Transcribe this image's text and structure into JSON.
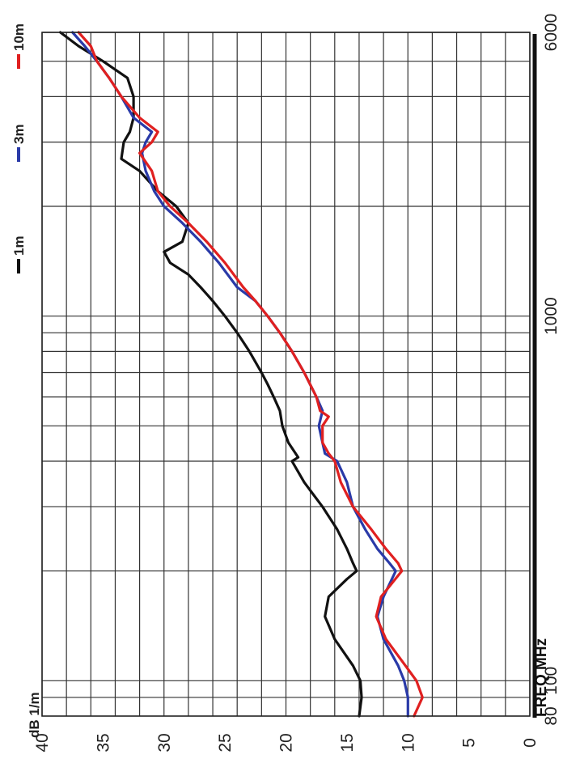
{
  "chart_data": {
    "type": "line",
    "xlabel": "FREQ MHz",
    "ylabel": "dB 1/m",
    "x_scale": "log",
    "xlim": [
      80,
      6000
    ],
    "ylim": [
      0,
      40
    ],
    "x_ticks": [
      80,
      100,
      1000,
      6000
    ],
    "y_ticks": [
      0,
      5,
      10,
      15,
      20,
      25,
      30,
      35,
      40
    ],
    "grid": true,
    "legend_position": "top",
    "series": [
      {
        "name": "1m",
        "color": "#111111",
        "points": [
          [
            80,
            14.0
          ],
          [
            90,
            13.8
          ],
          [
            100,
            13.9
          ],
          [
            110,
            14.5
          ],
          [
            130,
            16.0
          ],
          [
            150,
            16.8
          ],
          [
            170,
            16.5
          ],
          [
            190,
            15.0
          ],
          [
            200,
            14.2
          ],
          [
            210,
            14.5
          ],
          [
            230,
            15.0
          ],
          [
            260,
            15.8
          ],
          [
            300,
            17.0
          ],
          [
            350,
            18.5
          ],
          [
            400,
            19.5
          ],
          [
            410,
            19.0
          ],
          [
            450,
            19.8
          ],
          [
            500,
            20.3
          ],
          [
            550,
            20.5
          ],
          [
            600,
            21.0
          ],
          [
            650,
            21.5
          ],
          [
            700,
            22.0
          ],
          [
            800,
            23.0
          ],
          [
            900,
            24.0
          ],
          [
            1000,
            25.0
          ],
          [
            1100,
            26.0
          ],
          [
            1200,
            27.0
          ],
          [
            1300,
            28.0
          ],
          [
            1400,
            29.5
          ],
          [
            1500,
            30.0
          ],
          [
            1600,
            28.5
          ],
          [
            1800,
            28.0
          ],
          [
            2000,
            29.0
          ],
          [
            2200,
            30.5
          ],
          [
            2500,
            32.0
          ],
          [
            2700,
            33.5
          ],
          [
            3000,
            33.3
          ],
          [
            3200,
            32.8
          ],
          [
            3500,
            32.5
          ],
          [
            4000,
            32.5
          ],
          [
            4500,
            33.0
          ],
          [
            5000,
            35.0
          ],
          [
            5500,
            37.0
          ],
          [
            6000,
            38.5
          ]
        ]
      },
      {
        "name": "3m",
        "color": "#2a3aa8",
        "points": [
          [
            80,
            10.0
          ],
          [
            90,
            10.0
          ],
          [
            100,
            10.3
          ],
          [
            110,
            10.8
          ],
          [
            130,
            12.0
          ],
          [
            150,
            12.5
          ],
          [
            170,
            12.0
          ],
          [
            200,
            11.0
          ],
          [
            210,
            11.5
          ],
          [
            230,
            12.5
          ],
          [
            260,
            13.5
          ],
          [
            300,
            14.5
          ],
          [
            350,
            15.0
          ],
          [
            400,
            15.8
          ],
          [
            420,
            16.8
          ],
          [
            450,
            17.0
          ],
          [
            500,
            17.3
          ],
          [
            550,
            17.0
          ],
          [
            600,
            17.5
          ],
          [
            700,
            18.5
          ],
          [
            800,
            19.5
          ],
          [
            900,
            20.5
          ],
          [
            1000,
            21.5
          ],
          [
            1100,
            22.5
          ],
          [
            1200,
            24.0
          ],
          [
            1400,
            25.5
          ],
          [
            1600,
            27.0
          ],
          [
            1800,
            28.5
          ],
          [
            2000,
            30.0
          ],
          [
            2200,
            30.8
          ],
          [
            2500,
            31.5
          ],
          [
            2800,
            31.8
          ],
          [
            3000,
            31.5
          ],
          [
            3200,
            31.0
          ],
          [
            3500,
            32.5
          ],
          [
            4000,
            33.5
          ],
          [
            4500,
            34.5
          ],
          [
            5000,
            35.5
          ],
          [
            5500,
            36.5
          ],
          [
            6000,
            37.5
          ]
        ]
      },
      {
        "name": "10m",
        "color": "#e02020",
        "points": [
          [
            80,
            9.5
          ],
          [
            90,
            8.8
          ],
          [
            100,
            9.3
          ],
          [
            110,
            10.2
          ],
          [
            130,
            11.8
          ],
          [
            150,
            12.6
          ],
          [
            170,
            12.2
          ],
          [
            200,
            10.5
          ],
          [
            210,
            10.8
          ],
          [
            230,
            11.8
          ],
          [
            260,
            13.0
          ],
          [
            300,
            14.5
          ],
          [
            350,
            15.5
          ],
          [
            400,
            16.0
          ],
          [
            420,
            16.5
          ],
          [
            450,
            17.0
          ],
          [
            500,
            17.0
          ],
          [
            530,
            16.5
          ],
          [
            550,
            17.2
          ],
          [
            600,
            17.5
          ],
          [
            700,
            18.5
          ],
          [
            800,
            19.5
          ],
          [
            900,
            20.5
          ],
          [
            1000,
            21.5
          ],
          [
            1100,
            22.5
          ],
          [
            1200,
            23.5
          ],
          [
            1400,
            25.0
          ],
          [
            1600,
            26.5
          ],
          [
            1800,
            28.0
          ],
          [
            2000,
            29.5
          ],
          [
            2200,
            30.5
          ],
          [
            2500,
            31.0
          ],
          [
            2800,
            32.0
          ],
          [
            3000,
            31.0
          ],
          [
            3200,
            30.5
          ],
          [
            3500,
            32.0
          ],
          [
            4000,
            33.5
          ],
          [
            4500,
            34.5
          ],
          [
            5000,
            35.5
          ],
          [
            5500,
            36.0
          ],
          [
            6000,
            37.0
          ]
        ]
      }
    ]
  }
}
